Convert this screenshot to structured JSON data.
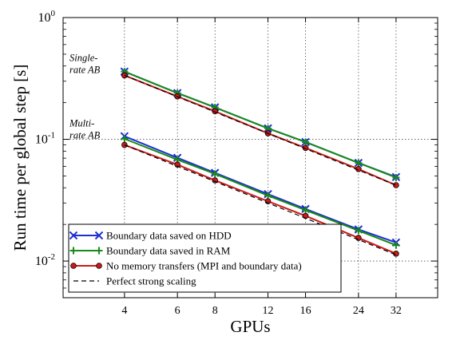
{
  "chart_data": {
    "type": "line",
    "xscale": "log2",
    "yscale": "log10",
    "x": [
      4,
      6,
      8,
      12,
      16,
      24,
      32
    ],
    "xticks": [
      4,
      6,
      8,
      12,
      16,
      24,
      32
    ],
    "xticklabels": [
      "4",
      "6",
      "8",
      "12",
      "16",
      "24",
      "32"
    ],
    "xlim": [
      2.5,
      44
    ],
    "ylim": [
      0.005,
      1
    ],
    "yticks": [
      {
        "value": 1,
        "base": "10",
        "exp": "0"
      },
      {
        "value": 0.1,
        "base": "10",
        "exp": "-1"
      },
      {
        "value": 0.01,
        "base": "10",
        "exp": "-2"
      }
    ],
    "xlabel": "GPUs",
    "ylabel": "Run time per global step [s]",
    "grid": true,
    "legend_position": "bottom-left",
    "annotations": [
      {
        "lines": [
          "Single-",
          "rate AB"
        ],
        "anchor_y": 0.36
      },
      {
        "lines": [
          "Multi-",
          "rate AB"
        ],
        "anchor_y": 0.105
      }
    ],
    "series": [
      {
        "name": "Boundary data saved on HDD",
        "color": "#1f2fd1",
        "marker": "x",
        "dash": false,
        "groups": [
          [
            0.36,
            0.24,
            0.183,
            0.123,
            0.095,
            0.064,
            0.049
          ],
          [
            0.106,
            0.0705,
            0.053,
            0.0355,
            0.0268,
            0.0182,
            0.0142
          ]
        ]
      },
      {
        "name": "Boundary data saved in RAM",
        "color": "#178a17",
        "marker": "+",
        "dash": false,
        "groups": [
          [
            0.36,
            0.24,
            0.183,
            0.123,
            0.095,
            0.064,
            0.0485
          ],
          [
            0.101,
            0.068,
            0.052,
            0.0345,
            0.0262,
            0.0178,
            0.0135
          ]
        ]
      },
      {
        "name": "No memory transfers (MPI and boundary data)",
        "color": "#cc1a1a",
        "marker": "o",
        "dash": false,
        "groups": [
          [
            0.335,
            0.225,
            0.17,
            0.112,
            0.085,
            0.057,
            0.042
          ],
          [
            0.09,
            0.062,
            0.046,
            0.031,
            0.0235,
            0.0155,
            0.0115
          ]
        ]
      },
      {
        "name": "Perfect strong scaling",
        "color": "#000000",
        "marker": "none",
        "dash": true,
        "groups": [
          [
            0.335,
            0.2233,
            0.1675,
            0.1117,
            0.0838,
            0.0558,
            0.0419
          ],
          [
            0.09,
            0.06,
            0.045,
            0.03,
            0.0225,
            0.015,
            0.01125
          ]
        ]
      }
    ]
  }
}
